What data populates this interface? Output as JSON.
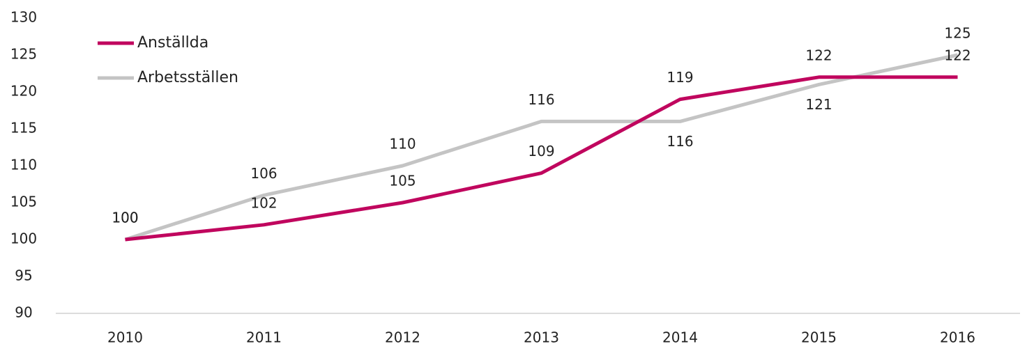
{
  "chart_data": {
    "type": "line",
    "categories": [
      "2010",
      "2011",
      "2012",
      "2013",
      "2014",
      "2015",
      "2016"
    ],
    "series": [
      {
        "name": "Anställda",
        "color": "#c0065e",
        "values": [
          100,
          102,
          105,
          109,
          119,
          122,
          122
        ]
      },
      {
        "name": "Arbetsställen",
        "color": "#c4c4c4",
        "values": [
          100,
          106,
          110,
          116,
          116,
          121,
          125
        ]
      }
    ],
    "ylim": [
      90,
      130
    ],
    "yticks": [
      90,
      95,
      100,
      105,
      110,
      115,
      120,
      125,
      130
    ],
    "grid": false,
    "legend": "upper left"
  }
}
